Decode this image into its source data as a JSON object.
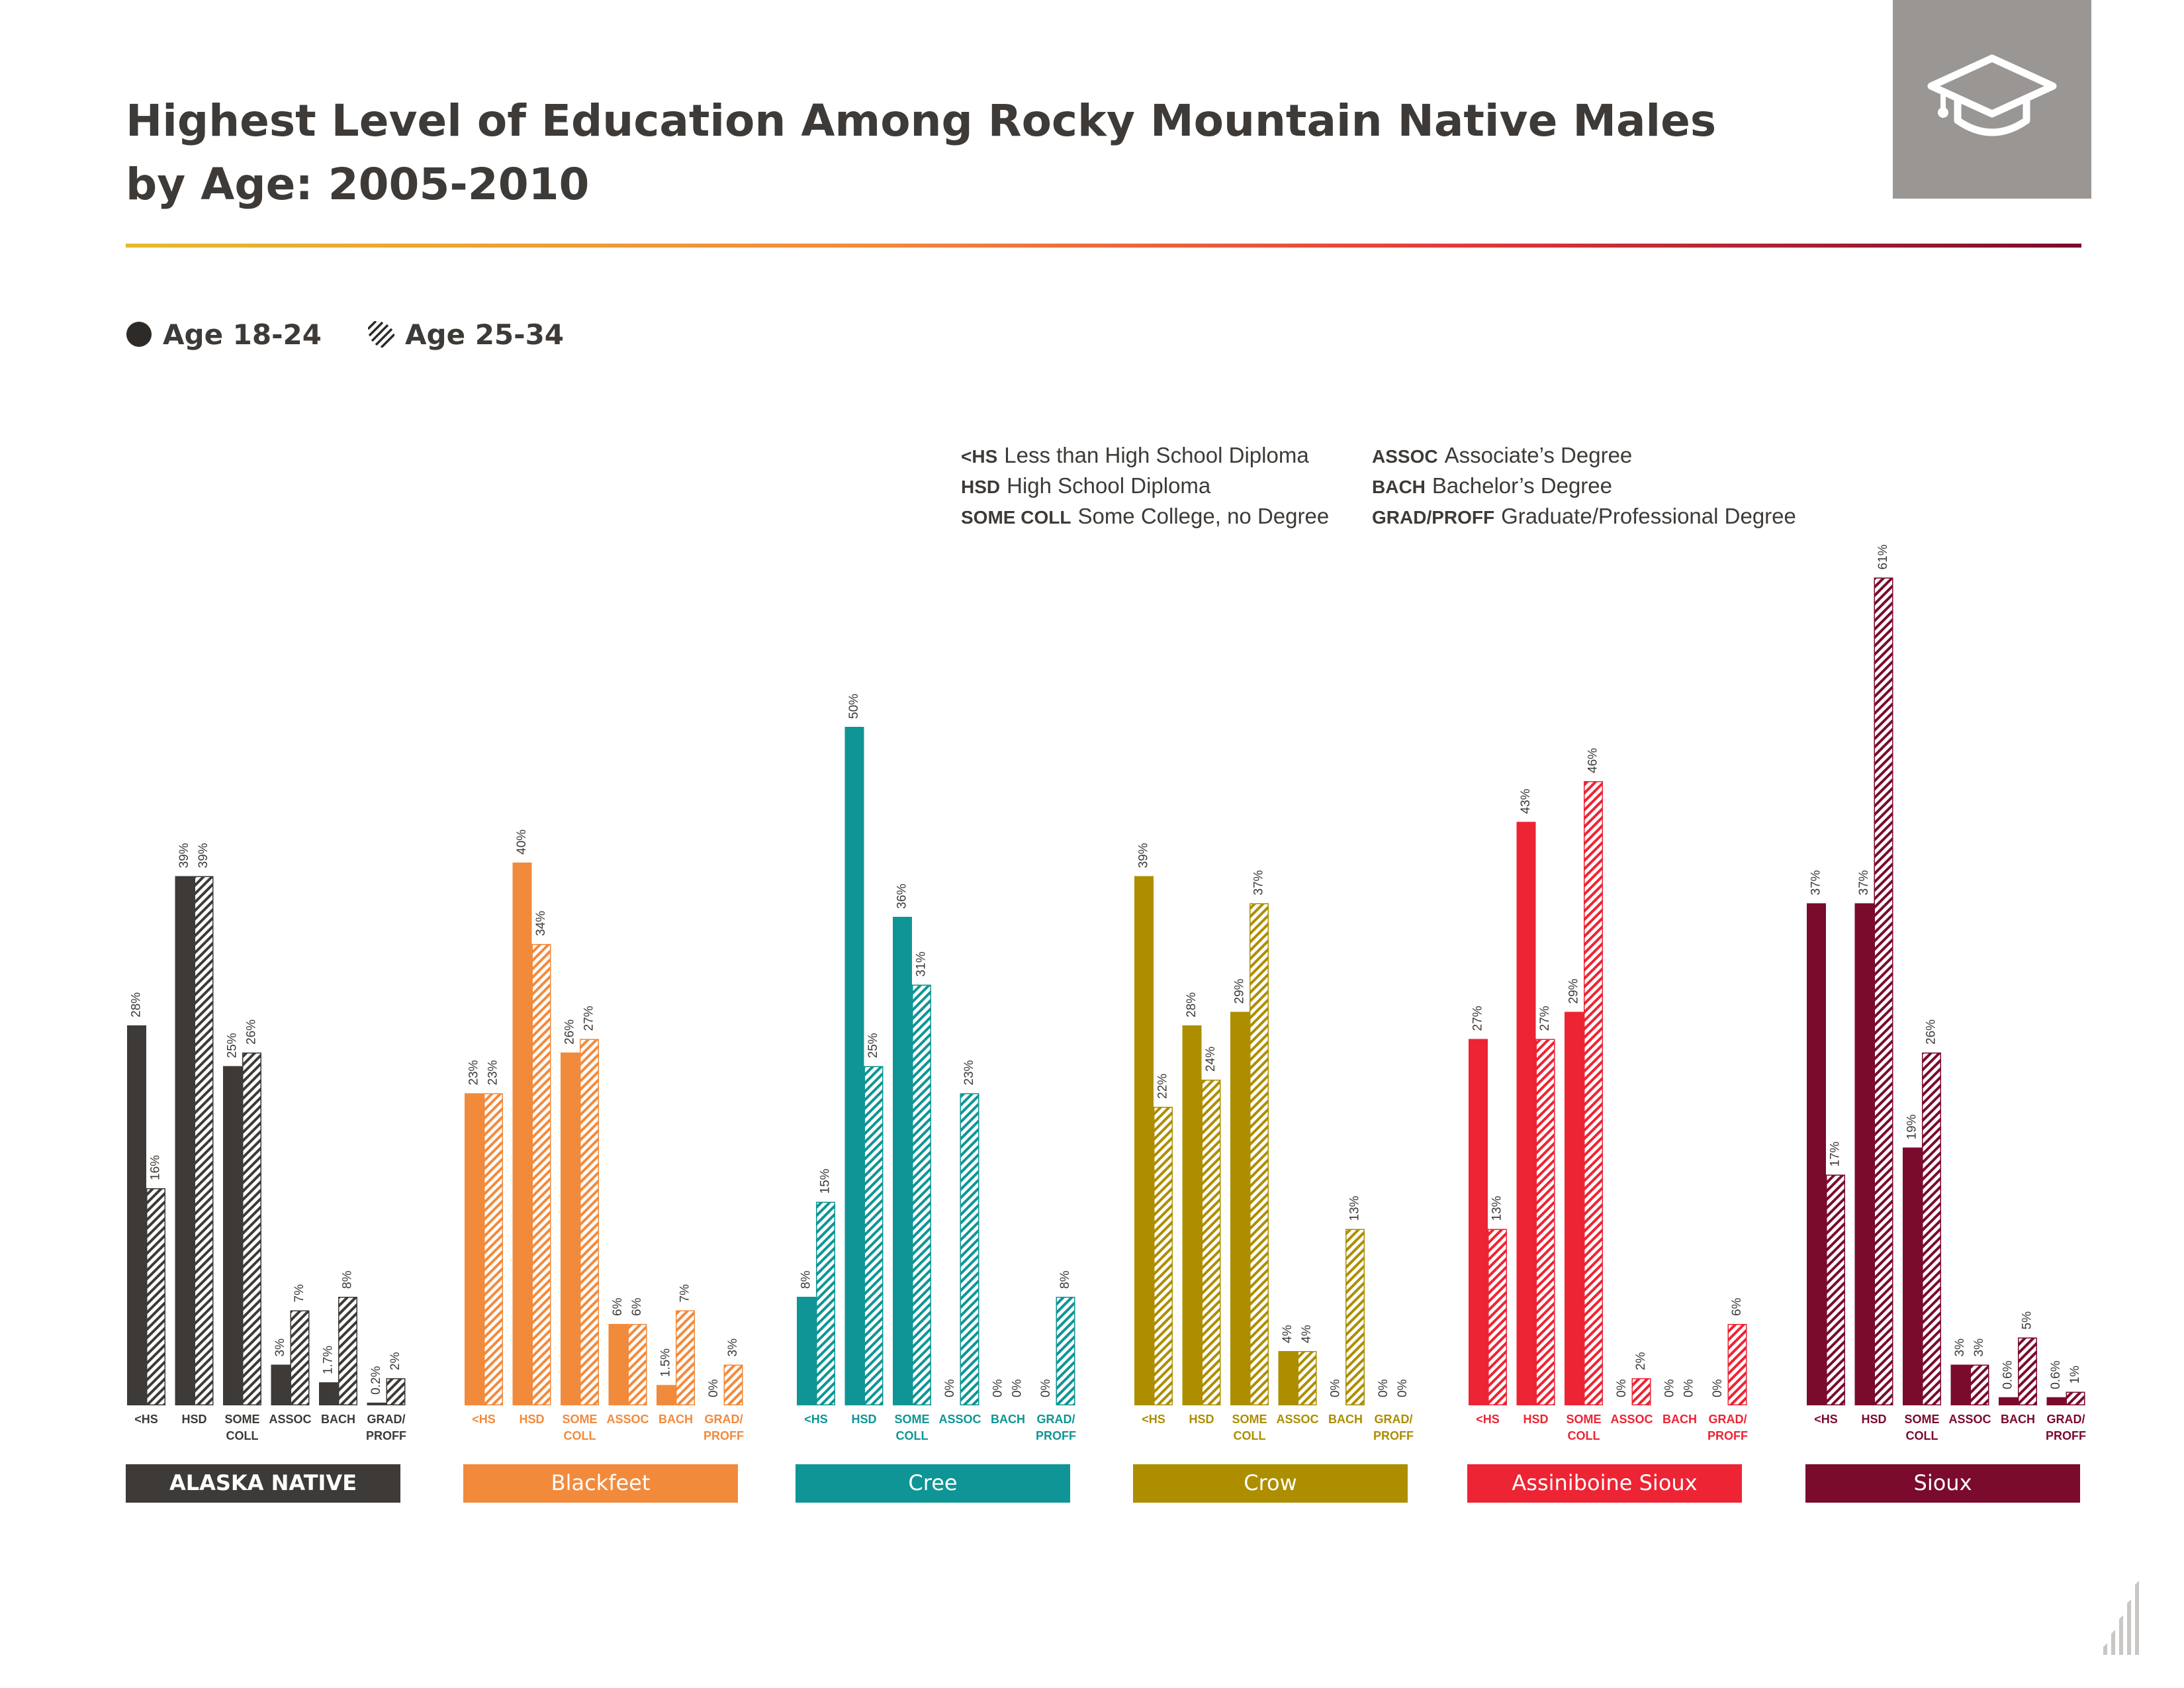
{
  "title": "Highest Level of Education Among Rocky Mountain Native Males by Age: 2005-2010",
  "legend": {
    "series_a": "Age 18-24",
    "series_b": "Age 25-34"
  },
  "icons": {
    "header": "graduation-cap-icon",
    "footer": "bar-chart-logo-icon"
  },
  "abbreviations": [
    {
      "code": "<HS",
      "meaning": "Less than High School Diploma"
    },
    {
      "code": "HSD",
      "meaning": "High School Diploma"
    },
    {
      "code": "SOME COLL",
      "meaning": "Some College, no Degree"
    },
    {
      "code": "ASSOC",
      "meaning": "Associate’s Degree"
    },
    {
      "code": "BACH",
      "meaning": "Bachelor’s Degree"
    },
    {
      "code": "GRAD/PROFF",
      "meaning": "Graduate/Professional Degree"
    }
  ],
  "chart_data": {
    "type": "bar",
    "categories": [
      "<HS",
      "HSD",
      "SOME COLL",
      "ASSOC",
      "BACH",
      "GRAD/ PROFF"
    ],
    "series_names": [
      "Age 18-24",
      "Age 25-34"
    ],
    "unit": "%",
    "ylim": [
      0,
      61
    ],
    "grid": false,
    "legend_position": "top-left",
    "groups": [
      {
        "name": "ALASKA NATIVE",
        "color": "#3d3a37",
        "age_18_24": [
          28,
          39,
          25,
          3,
          1.7,
          0.2
        ],
        "age_25_34": [
          16,
          39,
          26,
          7,
          8,
          2
        ],
        "labels_18_24": [
          "28%",
          "39%",
          "25%",
          "3%",
          "1.7%",
          "0.2%"
        ],
        "labels_25_34": [
          "16%",
          "39%",
          "26%",
          "7%",
          "8%",
          "2%"
        ]
      },
      {
        "name": "Blackfeet",
        "color": "#f28a3c",
        "age_18_24": [
          23,
          40,
          26,
          6,
          1.5,
          0
        ],
        "age_25_34": [
          23,
          34,
          27,
          6,
          7,
          3
        ],
        "labels_18_24": [
          "23%",
          "40%",
          "26%",
          "6%",
          "1.5%",
          "0%"
        ],
        "labels_25_34": [
          "23%",
          "34%",
          "27%",
          "6%",
          "7%",
          "3%"
        ]
      },
      {
        "name": "Cree",
        "color": "#0f9595",
        "age_18_24": [
          8,
          50,
          36,
          0,
          0,
          0
        ],
        "age_25_34": [
          15,
          25,
          31,
          23,
          0,
          8
        ],
        "labels_18_24": [
          "8%",
          "50%",
          "36%",
          "0%",
          "0%",
          "0%"
        ],
        "labels_25_34": [
          "15%",
          "25%",
          "31%",
          "23%",
          "0%",
          "8%"
        ]
      },
      {
        "name": "Crow",
        "color": "#ad8e00",
        "age_18_24": [
          39,
          28,
          29,
          4,
          0,
          0
        ],
        "age_25_34": [
          22,
          24,
          37,
          4,
          13,
          0
        ],
        "labels_18_24": [
          "39%",
          "28%",
          "29%",
          "4%",
          "0%",
          "0%"
        ],
        "labels_25_34": [
          "22%",
          "24%",
          "37%",
          "4%",
          "13%",
          "0%"
        ]
      },
      {
        "name": "Assiniboine Sioux",
        "color": "#ed2433",
        "age_18_24": [
          27,
          43,
          29,
          0,
          0,
          0
        ],
        "age_25_34": [
          13,
          27,
          46,
          2,
          0,
          6
        ],
        "labels_18_24": [
          "27%",
          "43%",
          "29%",
          "0%",
          "0%",
          "0%"
        ],
        "labels_25_34": [
          "13%",
          "27%",
          "46%",
          "2%",
          "0%",
          "6%"
        ]
      },
      {
        "name": "Sioux",
        "color": "#7a0b2c",
        "age_18_24": [
          37,
          37,
          19,
          3,
          0.6,
          0.6
        ],
        "age_25_34": [
          17,
          61,
          26,
          3,
          5,
          1
        ],
        "labels_18_24": [
          "37%",
          "37%",
          "19%",
          "3%",
          "0.6%",
          "0.6%"
        ],
        "labels_25_34": [
          "17%",
          "61%",
          "26%",
          "3%",
          "5%",
          "1%"
        ]
      }
    ]
  }
}
